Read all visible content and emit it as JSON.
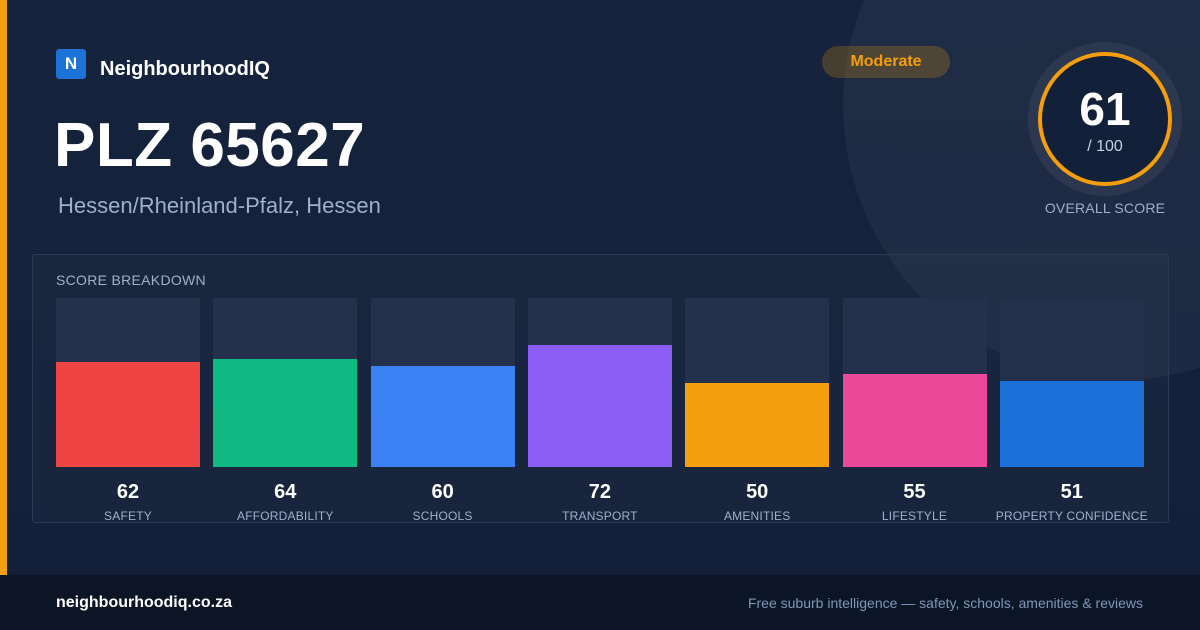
{
  "brand": {
    "logo_letter": "N",
    "name": "NeighbourhoodIQ"
  },
  "page": {
    "title": "PLZ 65627",
    "subtitle": "Hessen/Rheinland-Pfalz, Hessen",
    "rating_badge": "Moderate"
  },
  "overall": {
    "score": "61",
    "max_label": "/ 100",
    "label": "OVERALL SCORE",
    "ring_color": "#f59e0b"
  },
  "breakdown": {
    "title": "SCORE BREAKDOWN"
  },
  "chart_data": {
    "type": "bar",
    "title": "SCORE BREAKDOWN",
    "categories": [
      "SAFETY",
      "AFFORDABILITY",
      "SCHOOLS",
      "TRANSPORT",
      "AMENITIES",
      "LIFESTYLE",
      "PROPERTY CONFIDENCE"
    ],
    "values": [
      62,
      64,
      60,
      72,
      50,
      55,
      51
    ],
    "colors": [
      "#ef4444",
      "#10b981",
      "#3b82f6",
      "#8b5cf6",
      "#f59e0b",
      "#ec4899",
      "#1d6fd8"
    ],
    "ylim": [
      0,
      100
    ],
    "grid": false
  },
  "footer": {
    "url": "neighbourhoodiq.co.za",
    "tagline": "Free suburb intelligence — safety, schools, amenities & reviews"
  }
}
